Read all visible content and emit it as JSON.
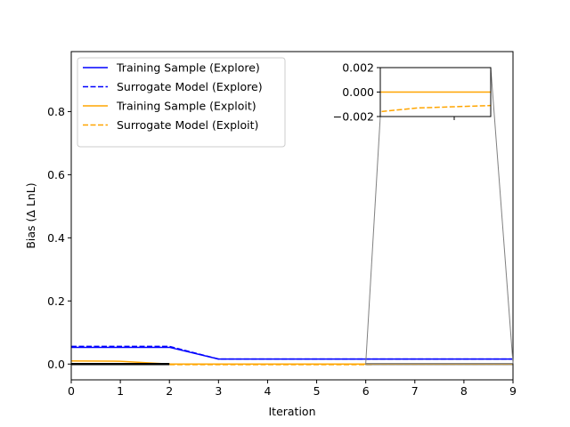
{
  "chart_data": {
    "type": "line",
    "xlabel": "Iteration",
    "ylabel": "Bias (Δ LnL)",
    "xlim": [
      0,
      9
    ],
    "ylim": [
      -0.05,
      0.99
    ],
    "xticks": [
      0,
      1,
      2,
      3,
      4,
      5,
      6,
      7,
      8,
      9
    ],
    "xtick_labels": [
      "0",
      "1",
      "2",
      "3",
      "4",
      "5",
      "6",
      "7",
      "8",
      "9"
    ],
    "yticks": [
      0.0,
      0.2,
      0.4,
      0.6,
      0.8
    ],
    "ytick_labels": [
      "0.0",
      "0.2",
      "0.4",
      "0.6",
      "0.8"
    ],
    "grid": false,
    "legend_position": "upper-left",
    "x": [
      0,
      1,
      2,
      3,
      4,
      5,
      6,
      7,
      8,
      9
    ],
    "series": [
      {
        "name": "Training Sample (Explore)",
        "color": "#0000ff",
        "style": "solid",
        "values": [
          0.053,
          0.053,
          0.053,
          0.016,
          0.016,
          0.016,
          0.016,
          0.016,
          0.016,
          0.016
        ]
      },
      {
        "name": "Surrogate Model (Explore)",
        "color": "#0000ff",
        "style": "dashed",
        "values": [
          0.056,
          0.056,
          0.056,
          0.016,
          0.016,
          0.016,
          0.016,
          0.016,
          0.016,
          0.016
        ]
      },
      {
        "name": "Training Sample (Exploit)",
        "color": "#ffa500",
        "style": "solid",
        "values": [
          0.01,
          0.009,
          0.0,
          0.0,
          0.0,
          0.0,
          0.0,
          0.0,
          0.0,
          0.0
        ]
      },
      {
        "name": "Surrogate Model (Exploit)",
        "color": "#ffa500",
        "style": "dashed",
        "values": [
          0.0,
          0.0,
          -0.0016,
          -0.0016,
          -0.0016,
          -0.0016,
          -0.0016,
          -0.0013,
          -0.0012,
          -0.0011
        ]
      }
    ],
    "reference_line": {
      "y": 0.0,
      "color": "#000000",
      "x_range": [
        0,
        2
      ]
    },
    "inset": {
      "xlim": [
        6,
        9
      ],
      "ylim": [
        -0.002,
        0.002
      ],
      "yticks": [
        0.002,
        0.0,
        -0.002
      ],
      "ytick_labels": [
        "0.002",
        "0.000",
        "−0.002"
      ],
      "zoom_box_color": "#808080"
    }
  }
}
